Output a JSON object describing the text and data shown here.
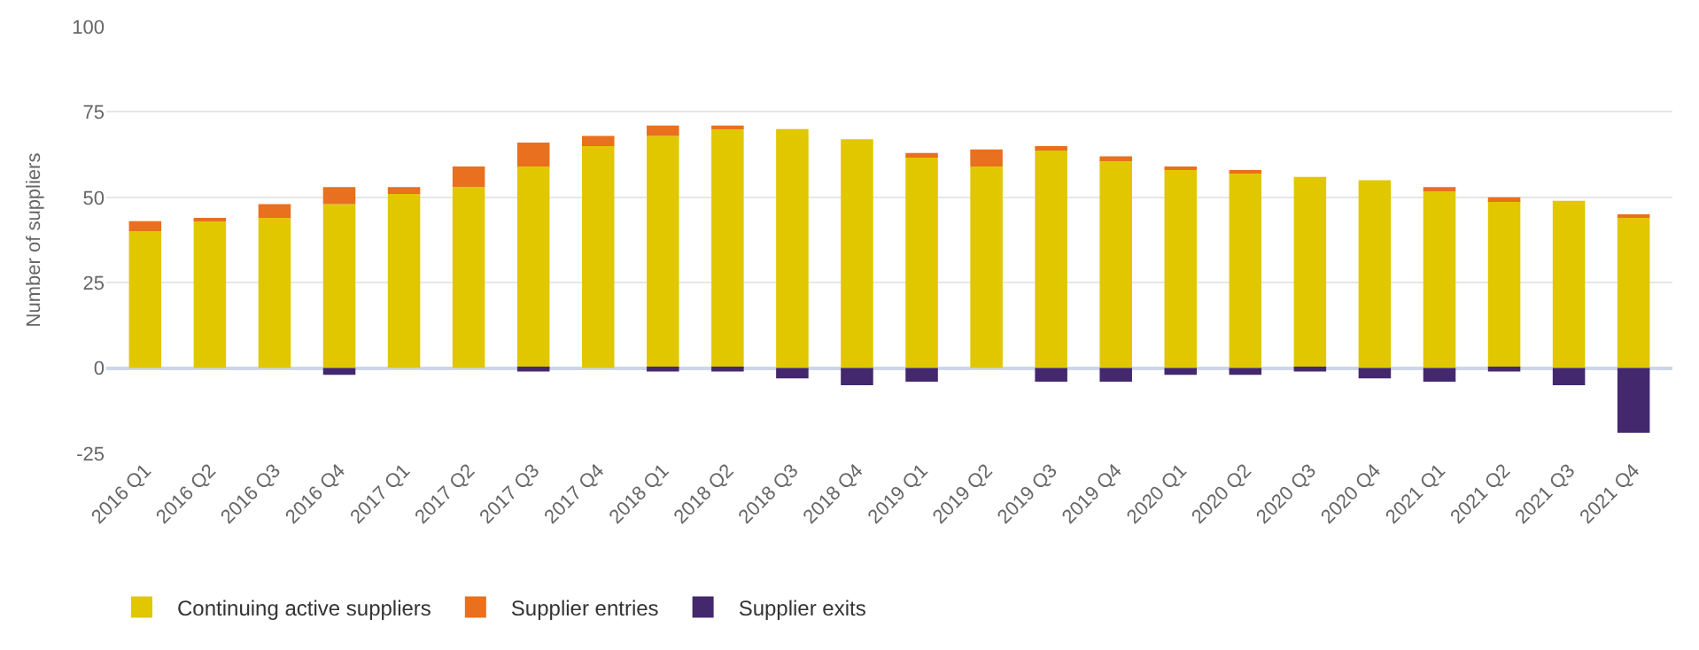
{
  "chart_data": {
    "type": "bar",
    "stacked": true,
    "ylabel": "Number of suppliers",
    "categories": [
      "2016 Q1",
      "2016 Q2",
      "2016 Q3",
      "2016 Q4",
      "2017 Q1",
      "2017 Q2",
      "2017 Q3",
      "2017 Q4",
      "2018 Q1",
      "2018 Q2",
      "2018 Q3",
      "2018 Q4",
      "2019 Q1",
      "2019 Q2",
      "2019 Q3",
      "2019 Q4",
      "2020 Q1",
      "2020 Q2",
      "2020 Q3",
      "2020 Q4",
      "2021 Q1",
      "2021 Q2",
      "2021 Q3",
      "2021 Q4"
    ],
    "series": [
      {
        "name": "Continuing active suppliers",
        "color": "#e0c700",
        "values": [
          40,
          43,
          44,
          48,
          51,
          53,
          59,
          65,
          68,
          70,
          70,
          67,
          62,
          59,
          64,
          61,
          58,
          57,
          56,
          55,
          52,
          49,
          49,
          44
        ]
      },
      {
        "name": "Supplier entries",
        "color": "#e8701e",
        "values": [
          3,
          1,
          4,
          5,
          2,
          6,
          7,
          3,
          3,
          1,
          0,
          0,
          1,
          5,
          1,
          1,
          1,
          1,
          0,
          0,
          1,
          1,
          0,
          1
        ]
      },
      {
        "name": "Supplier exits",
        "color": "#44286e",
        "values": [
          0,
          0,
          0,
          -2,
          0,
          0,
          -1,
          0,
          -1,
          -1,
          -3,
          -5,
          -4,
          0,
          -4,
          -4,
          -2,
          -2,
          -1,
          -3,
          -4,
          -1,
          -5,
          -19
        ]
      }
    ],
    "ylim": [
      -25,
      100
    ],
    "yticks": [
      -25,
      0,
      25,
      50,
      75,
      100
    ],
    "grid": "y",
    "legend": "bottom left"
  }
}
